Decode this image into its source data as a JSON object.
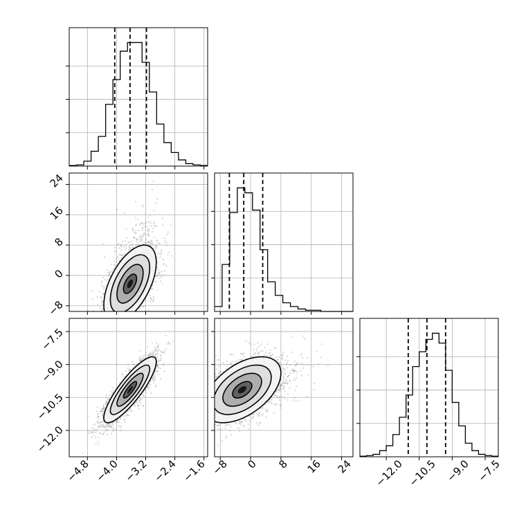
{
  "chart_data": [
    {
      "type": "histogram",
      "panel": "hist-a",
      "xlim": [
        -5.3,
        -1.5
      ],
      "ylim": [
        0,
        1.12
      ],
      "bin_edges": [
        -5.3,
        -5.1,
        -4.9,
        -4.7,
        -4.5,
        -4.3,
        -4.1,
        -3.9,
        -3.7,
        -3.5,
        -3.3,
        -3.1,
        -2.9,
        -2.7,
        -2.5,
        -2.3,
        -2.1,
        -1.9,
        -1.7,
        -1.5
      ],
      "counts": [
        0.005,
        0.01,
        0.04,
        0.12,
        0.24,
        0.5,
        0.7,
        0.93,
        1.0,
        1.0,
        0.84,
        0.6,
        0.34,
        0.19,
        0.11,
        0.05,
        0.02,
        0.01,
        0.005
      ],
      "quantiles": [
        -4.05,
        -3.63,
        -3.18
      ]
    },
    {
      "type": "histogram",
      "panel": "hist-b",
      "xlim": [
        -9.5,
        27
      ],
      "ylim": [
        0,
        1.12
      ],
      "bin_edges": [
        -9.5,
        -7.5,
        -5.5,
        -3.5,
        -1.5,
        0.5,
        2.5,
        4.5,
        6.5,
        8.5,
        10.5,
        12.5,
        14.5,
        16.5,
        18.5,
        20.5,
        22.5,
        24.5,
        27
      ],
      "counts": [
        0.04,
        0.38,
        0.8,
        1.0,
        0.96,
        0.82,
        0.5,
        0.24,
        0.13,
        0.07,
        0.04,
        0.02,
        0.01,
        0.01,
        0.0,
        0.0,
        0.0,
        0.0
      ],
      "quantiles": [
        -5.6,
        -1.8,
        3.2
      ]
    },
    {
      "type": "histogram",
      "panel": "hist-c",
      "xlim": [
        -13.2,
        -6.9
      ],
      "ylim": [
        0,
        1.12
      ],
      "bin_edges": [
        -13.2,
        -12.9,
        -12.6,
        -12.3,
        -12.0,
        -11.7,
        -11.4,
        -11.1,
        -10.8,
        -10.5,
        -10.2,
        -9.9,
        -9.6,
        -9.3,
        -9.0,
        -8.7,
        -8.4,
        -8.1,
        -7.8,
        -7.5,
        -7.2,
        -6.9
      ],
      "counts": [
        0.005,
        0.01,
        0.02,
        0.05,
        0.09,
        0.18,
        0.32,
        0.5,
        0.73,
        0.85,
        0.95,
        1.0,
        0.92,
        0.7,
        0.44,
        0.25,
        0.11,
        0.05,
        0.02,
        0.01,
        0.005
      ],
      "quantiles": [
        -11.0,
        -10.15,
        -9.3
      ]
    },
    {
      "type": "scatter",
      "panel": "corner-ab",
      "xlim": [
        -5.3,
        -1.5
      ],
      "ylim": [
        -9.5,
        27
      ],
      "mean": [
        -3.63,
        -2.2
      ],
      "std": [
        0.36,
        5.1
      ],
      "corr": 0.55,
      "contour_levels": [
        "0.5sigma",
        "1sigma",
        "1.5sigma",
        "2sigma"
      ]
    },
    {
      "type": "scatter",
      "panel": "corner-ac",
      "xlim": [
        -5.3,
        -1.5
      ],
      "ylim": [
        -13.2,
        -6.9
      ],
      "mean": [
        -3.63,
        -10.15
      ],
      "std": [
        0.36,
        0.75
      ],
      "corr": 0.85,
      "contour_levels": [
        "0.5sigma",
        "1sigma",
        "1.5sigma",
        "2sigma"
      ]
    },
    {
      "type": "scatter",
      "panel": "corner-bc",
      "xlim": [
        -9.5,
        27
      ],
      "ylim": [
        -13.2,
        -6.9
      ],
      "mean": [
        -2.2,
        -10.15
      ],
      "std": [
        5.1,
        0.75
      ],
      "corr": 0.5,
      "contour_levels": [
        "0.5sigma",
        "1sigma",
        "1.5sigma",
        "2sigma"
      ]
    }
  ],
  "axes": {
    "col1_ticks": [
      "−4.8",
      "−4.0",
      "−3.2",
      "−2.4",
      "−1.6"
    ],
    "col2_ticks": [
      "−8",
      "0",
      "8",
      "16",
      "24"
    ],
    "col3_ticks": [
      "−12.0",
      "−10.5",
      "−9.0",
      "−7.5"
    ],
    "row2_ticks": [
      "24",
      "16",
      "8",
      "0",
      "−8"
    ],
    "row3_ticks": [
      "−7.5",
      "−9.0",
      "−10.5",
      "−12.0"
    ]
  },
  "colors": {
    "background": "#ffffff",
    "line": "#000000",
    "grid": "#b0b0b0",
    "points": "#7f7f7f"
  }
}
